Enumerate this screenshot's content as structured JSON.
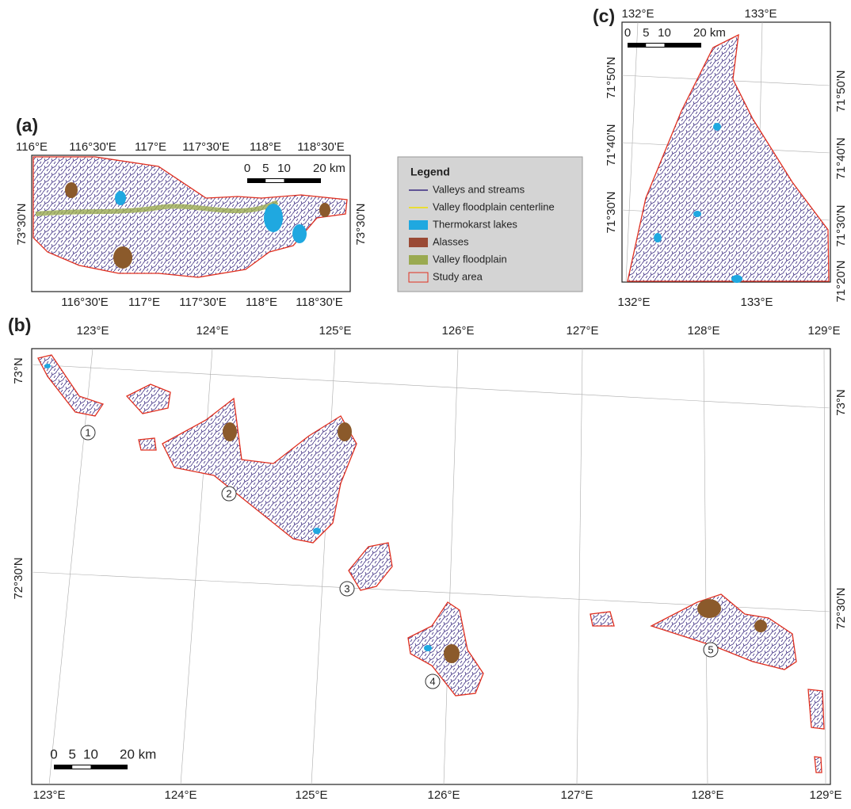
{
  "panels": [
    {
      "label": "(a)",
      "top_labels": [
        "116°E",
        "116°30'E",
        "117°E",
        "117°30'E",
        "118°E",
        "118°30'E"
      ],
      "bottom_labels": [
        "116°30'E",
        "117°E",
        "117°30'E",
        "118°E",
        "118°30'E"
      ],
      "left_labels": [
        "73°30'N"
      ],
      "right_labels": [
        "73°30'N"
      ],
      "scale": [
        "0",
        "5",
        "10",
        "20 km"
      ]
    },
    {
      "label": "(b)",
      "top_labels": [
        "123°E",
        "124°E",
        "125°E",
        "126°E",
        "127°E",
        "128°E",
        "129°E"
      ],
      "bottom_labels": [
        "123°E",
        "124°E",
        "125°E",
        "126°E",
        "127°E",
        "128°E",
        "129°E"
      ],
      "left_labels": [
        "73°N",
        "72°30'N"
      ],
      "right_labels": [
        "73°N",
        "72°30'N"
      ],
      "scale": [
        "0",
        "5",
        "10",
        "20 km"
      ]
    },
    {
      "label": "(c)",
      "top_labels": [
        "132°E",
        "133°E"
      ],
      "bottom_labels": [
        "132°E",
        "133°E"
      ],
      "left_labels": [
        "71°50'N",
        "71°40'N",
        "71°30'N"
      ],
      "right_labels": [
        "71°50'N",
        "71°40'N",
        "71°30'N",
        "71°20'N"
      ],
      "scale": [
        "0",
        "5",
        "10",
        "20 km"
      ]
    }
  ],
  "legend": {
    "title": "Legend",
    "items": [
      "Valleys and streams",
      "Valley floodplain centerline",
      "Thermokarst lakes",
      "Alasses",
      "Valley floodplain",
      "Study area"
    ]
  },
  "sites": [
    "1",
    "2",
    "3",
    "4",
    "5"
  ]
}
